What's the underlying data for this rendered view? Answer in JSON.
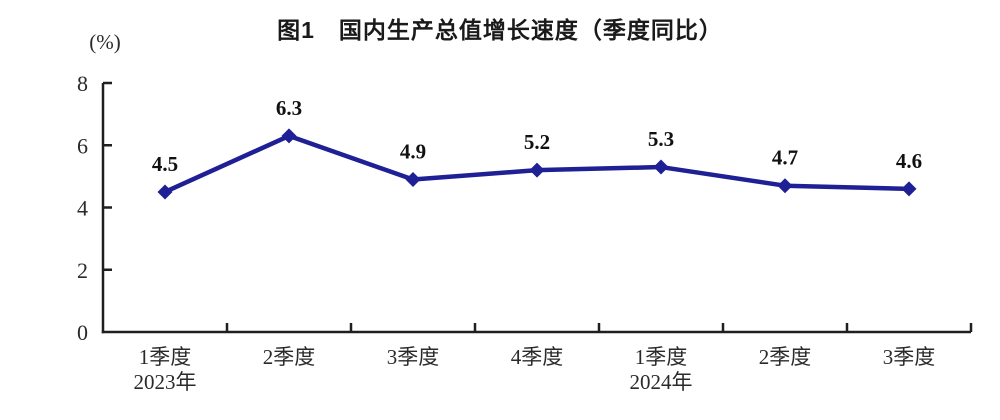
{
  "chart_data": {
    "type": "line",
    "title": "图1　国内生产总值增长速度（季度同比）",
    "unit_label": "(%)",
    "categories": [
      "1季度",
      "2季度",
      "3季度",
      "4季度",
      "1季度",
      "2季度",
      "3季度"
    ],
    "category_year_labels": [
      "2023年",
      "",
      "",
      "",
      "2024年",
      "",
      ""
    ],
    "values": [
      4.5,
      6.3,
      4.9,
      5.2,
      5.3,
      4.7,
      4.6
    ],
    "value_labels": [
      "4.5",
      "6.3",
      "4.9",
      "5.2",
      "5.3",
      "4.7",
      "4.6"
    ],
    "ylim": [
      0,
      8
    ],
    "yticks": [
      0,
      2,
      4,
      6,
      8
    ],
    "grid": false,
    "legend": "none",
    "marker": "diamond",
    "line_color": "#1f1f96",
    "axis_color": "#1f1f1f",
    "tick_label_color": "#2a2a2a",
    "data_label_color": "#111111"
  }
}
